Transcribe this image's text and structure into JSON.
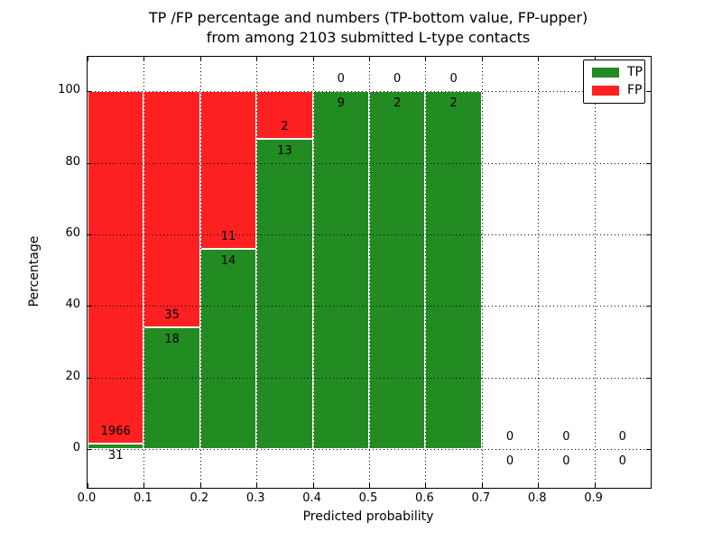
{
  "figure": {
    "title_line1": "TP /FP percentage and numbers (TP-bottom value, FP-upper)",
    "title_line2": "from among 2103 submitted L-type contacts"
  },
  "axes": {
    "xlabel": "Predicted probability",
    "ylabel": "Percentage",
    "xlim": [
      0.0,
      1.0
    ],
    "ylim": [
      -10.8,
      109.6
    ],
    "grid_style": "dotted",
    "x_ticks": [
      {
        "label": "0.0",
        "value": 0.0
      },
      {
        "label": "0.1",
        "value": 0.1
      },
      {
        "label": "0.2",
        "value": 0.2
      },
      {
        "label": "0.3",
        "value": 0.3
      },
      {
        "label": "0.4",
        "value": 0.4
      },
      {
        "label": "0.5",
        "value": 0.5
      },
      {
        "label": "0.6",
        "value": 0.6
      },
      {
        "label": "0.7",
        "value": 0.7
      },
      {
        "label": "0.8",
        "value": 0.8
      },
      {
        "label": "0.9",
        "value": 0.9
      }
    ],
    "y_ticks": [
      {
        "label": "0",
        "value": 0
      },
      {
        "label": "20",
        "value": 20
      },
      {
        "label": "40",
        "value": 40
      },
      {
        "label": "60",
        "value": 60
      },
      {
        "label": "80",
        "value": 80
      },
      {
        "label": "100",
        "value": 100
      }
    ]
  },
  "legend": {
    "position": "upper right",
    "entries": [
      {
        "label": "TP",
        "color": "#228b22"
      },
      {
        "label": "FP",
        "color": "#ff2121"
      }
    ]
  },
  "chart_data": {
    "type": "bar",
    "stacked": true,
    "title": "TP /FP percentage and numbers (TP-bottom value, FP-upper) from among 2103 submitted L-type contacts",
    "xlabel": "Predicted probability",
    "ylabel": "Percentage",
    "total_contacts": 2103,
    "bin_width": 0.1,
    "bins_start": [
      0.0,
      0.1,
      0.2,
      0.3,
      0.4,
      0.5,
      0.6,
      0.7,
      0.8,
      0.9
    ],
    "series": [
      {
        "name": "TP",
        "color": "#228b22",
        "counts": [
          31,
          18,
          14,
          13,
          9,
          2,
          2,
          0,
          0,
          0
        ],
        "percent": [
          1.55,
          33.96,
          56.0,
          86.67,
          100.0,
          100.0,
          100.0,
          0.0,
          0.0,
          0.0
        ]
      },
      {
        "name": "FP",
        "color": "#ff2121",
        "counts": [
          1966,
          35,
          11,
          2,
          0,
          0,
          0,
          0,
          0,
          0
        ],
        "percent": [
          98.45,
          66.04,
          44.0,
          13.33,
          0.0,
          0.0,
          0.0,
          0.0,
          0.0,
          0.0
        ]
      }
    ],
    "ylim": [
      -10.8,
      109.6
    ],
    "grid": true,
    "legend_position": "upper right"
  }
}
